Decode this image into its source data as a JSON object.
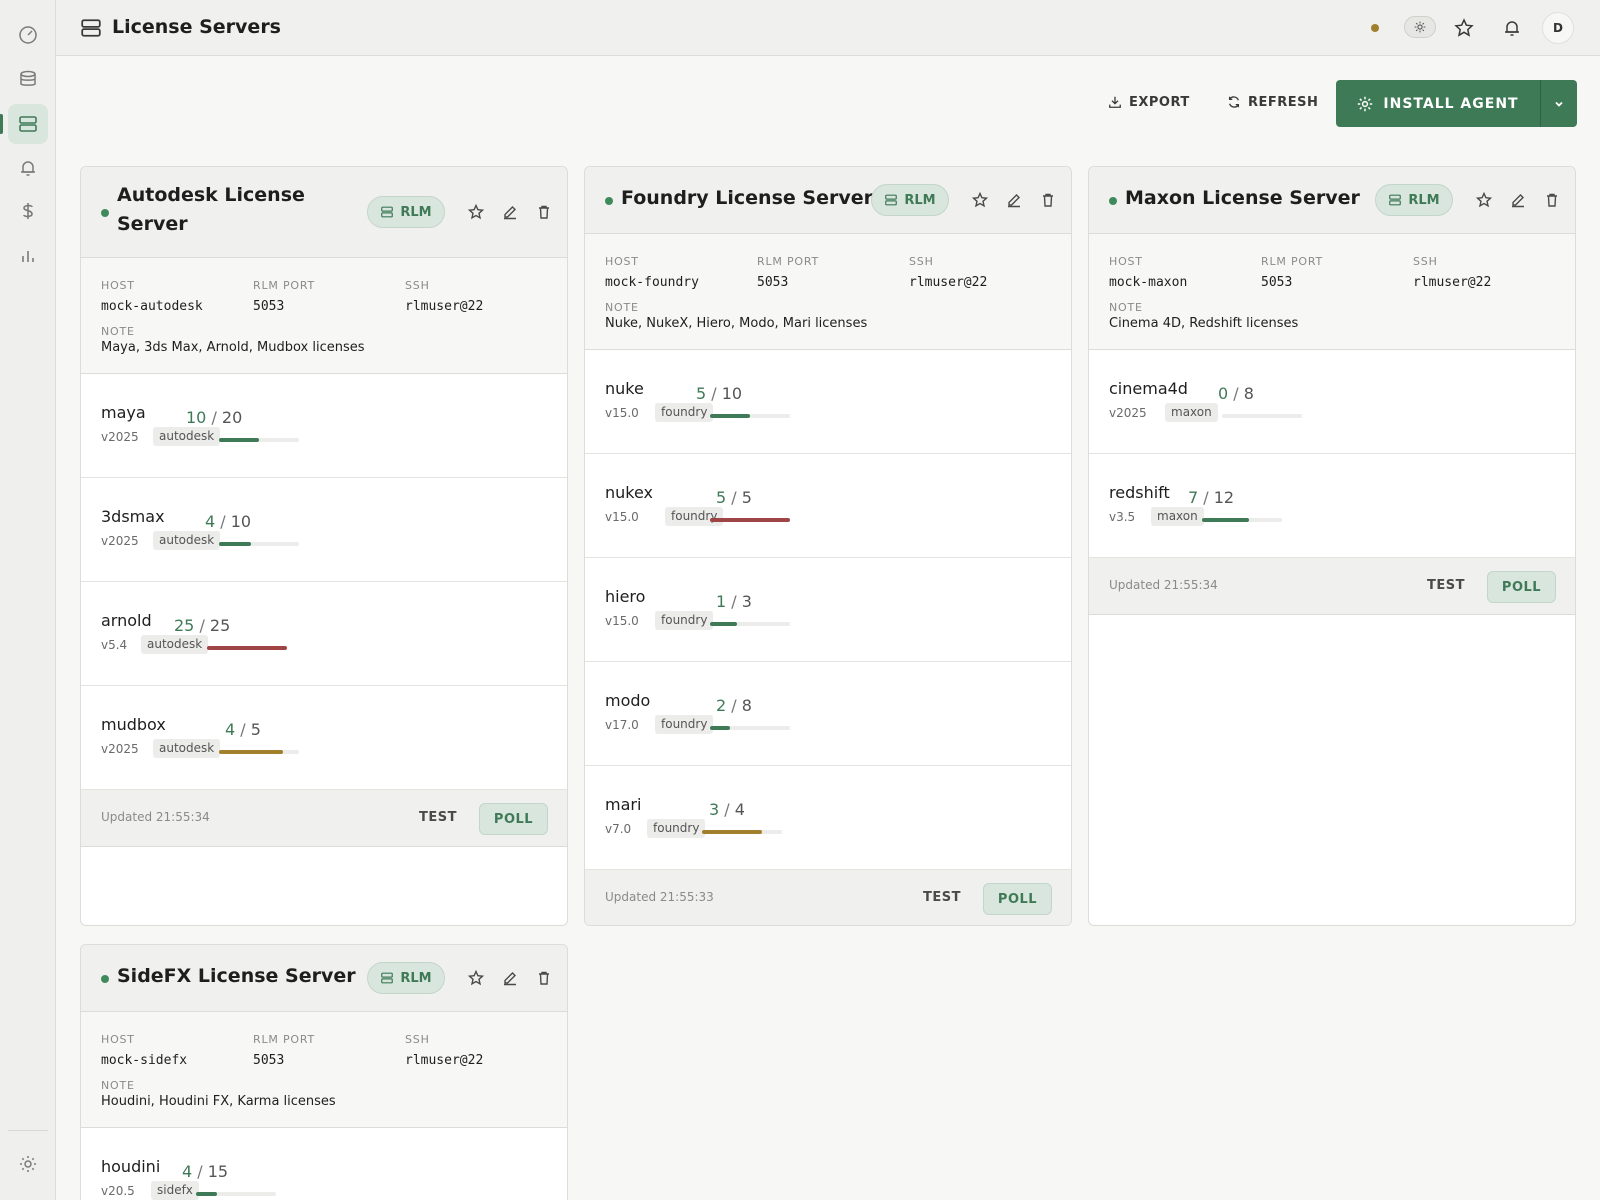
{
  "header": {
    "title": "License Servers",
    "avatar_initial": "D",
    "icons": [
      "servers-icon",
      "sun-icon",
      "star-icon",
      "bell-icon"
    ]
  },
  "sidebar": {
    "items": [
      "dashboard-icon",
      "database-icon",
      "servers-icon",
      "bell-icon",
      "dollar-icon",
      "chart-icon",
      "gear-icon"
    ],
    "active": "servers-icon"
  },
  "toolbar": {
    "export_label": "EXPORT",
    "refresh_label": "REFRESH",
    "install_label": "INSTALL AGENT"
  },
  "colors": {
    "accent": "#3f7a57",
    "ok": "#3f7a57",
    "full": "#a04545",
    "warn": "#a27f2c",
    "status_dot": "#a27f2c"
  },
  "labels": {
    "host": "HOST",
    "port": "RLM PORT",
    "ssh": "SSH",
    "note": "NOTE",
    "badge": "RLM",
    "test": "TEST",
    "poll": "POLL"
  },
  "servers": [
    {
      "title": "Autodesk License Server",
      "host": "mock-autodesk",
      "port": "5053",
      "ssh": "rlmuser@22",
      "note": "Maya, 3ds Max, Arnold, Mudbox licenses",
      "updated": "Updated 21:55:34",
      "licenses": [
        {
          "name": "maya",
          "version": "v2025",
          "vendor": "autodesk",
          "used": "10",
          "total": "20",
          "fraction": 0.5,
          "status": "ok"
        },
        {
          "name": "3dsmax",
          "version": "v2025",
          "vendor": "autodesk",
          "used": "4",
          "total": "10",
          "fraction": 0.4,
          "status": "ok"
        },
        {
          "name": "arnold",
          "version": "v5.4",
          "vendor": "autodesk",
          "used": "25",
          "total": "25",
          "fraction": 1.0,
          "status": "full"
        },
        {
          "name": "mudbox",
          "version": "v2025",
          "vendor": "autodesk",
          "used": "4",
          "total": "5",
          "fraction": 0.8,
          "status": "warn"
        }
      ]
    },
    {
      "title": "Foundry License Server",
      "host": "mock-foundry",
      "port": "5053",
      "ssh": "rlmuser@22",
      "note": "Nuke, NukeX, Hiero, Modo, Mari licenses",
      "updated": "Updated 21:55:33",
      "licenses": [
        {
          "name": "nuke",
          "version": "v15.0",
          "vendor": "foundry",
          "used": "5",
          "total": "10",
          "fraction": 0.5,
          "status": "ok"
        },
        {
          "name": "nukex",
          "version": "v15.0",
          "vendor": "foundry",
          "used": "5",
          "total": "5",
          "fraction": 1.0,
          "status": "full"
        },
        {
          "name": "hiero",
          "version": "v15.0",
          "vendor": "foundry",
          "used": "1",
          "total": "3",
          "fraction": 0.333,
          "status": "ok"
        },
        {
          "name": "modo",
          "version": "v17.0",
          "vendor": "foundry",
          "used": "2",
          "total": "8",
          "fraction": 0.25,
          "status": "ok"
        },
        {
          "name": "mari",
          "version": "v7.0",
          "vendor": "foundry",
          "used": "3",
          "total": "4",
          "fraction": 0.75,
          "status": "warn"
        }
      ]
    },
    {
      "title": "Maxon License Server",
      "host": "mock-maxon",
      "port": "5053",
      "ssh": "rlmuser@22",
      "note": "Cinema 4D, Redshift licenses",
      "updated": "Updated 21:55:34",
      "licenses": [
        {
          "name": "cinema4d",
          "version": "v2025",
          "vendor": "maxon",
          "used": "0",
          "total": "8",
          "fraction": 0.0,
          "status": "ok"
        },
        {
          "name": "redshift",
          "version": "v3.5",
          "vendor": "maxon",
          "used": "7",
          "total": "12",
          "fraction": 0.583,
          "status": "ok"
        }
      ]
    },
    {
      "title": "SideFX License Server",
      "host": "mock-sidefx",
      "port": "5053",
      "ssh": "rlmuser@22",
      "note": "Houdini, Houdini FX, Karma licenses",
      "updated": "",
      "licenses": [
        {
          "name": "houdini",
          "version": "v20.5",
          "vendor": "sidefx",
          "used": "4",
          "total": "15",
          "fraction": 0.267,
          "status": "ok"
        }
      ]
    }
  ]
}
